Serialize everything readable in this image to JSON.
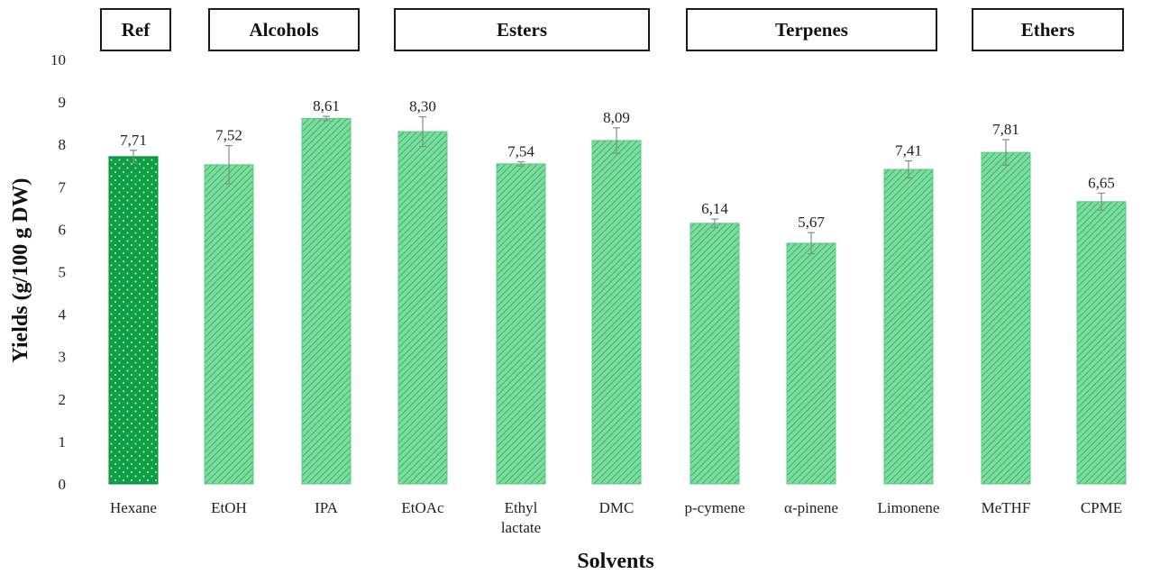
{
  "chart_data": {
    "type": "bar",
    "categories": [
      "Hexane",
      "EtOH",
      "IPA",
      "EtOAc",
      "Ethyl lactate",
      "DMC",
      "p-cymene",
      "α-pinene",
      "Limonene",
      "MeTHF",
      "CPME"
    ],
    "values": [
      7.71,
      7.52,
      8.61,
      8.3,
      7.54,
      8.09,
      6.14,
      5.67,
      7.41,
      7.81,
      6.65
    ],
    "value_labels": [
      "7,71",
      "7,52",
      "8,61",
      "8,30",
      "7,54",
      "8,09",
      "6,14",
      "5,67",
      "7,41",
      "7,81",
      "6,65"
    ],
    "errors": [
      0.15,
      0.45,
      0.05,
      0.35,
      0.05,
      0.3,
      0.1,
      0.25,
      0.2,
      0.3,
      0.2
    ],
    "xlabel": "Solvents",
    "ylabel": "Yields (g/100 g DW)",
    "ylim": [
      0,
      10
    ],
    "yticks": [
      "0",
      "1",
      "2",
      "3",
      "4",
      "5",
      "6",
      "7",
      "8",
      "9",
      "10"
    ],
    "grid": false,
    "groups": [
      {
        "label": "Ref",
        "categories": [
          "Hexane"
        ]
      },
      {
        "label": "Alcohols",
        "categories": [
          "EtOH",
          "IPA"
        ]
      },
      {
        "label": "Esters",
        "categories": [
          "EtOAc",
          "Ethyl lactate",
          "DMC"
        ]
      },
      {
        "label": "Terpenes",
        "categories": [
          "p-cymene",
          "α-pinene",
          "Limonene"
        ]
      },
      {
        "label": "Ethers",
        "categories": [
          "MeTHF",
          "CPME"
        ]
      }
    ],
    "colors": {
      "reference_bar": "#12a84a",
      "solvent_bar": "#74d89a",
      "hatch": "#3fb96b"
    }
  }
}
